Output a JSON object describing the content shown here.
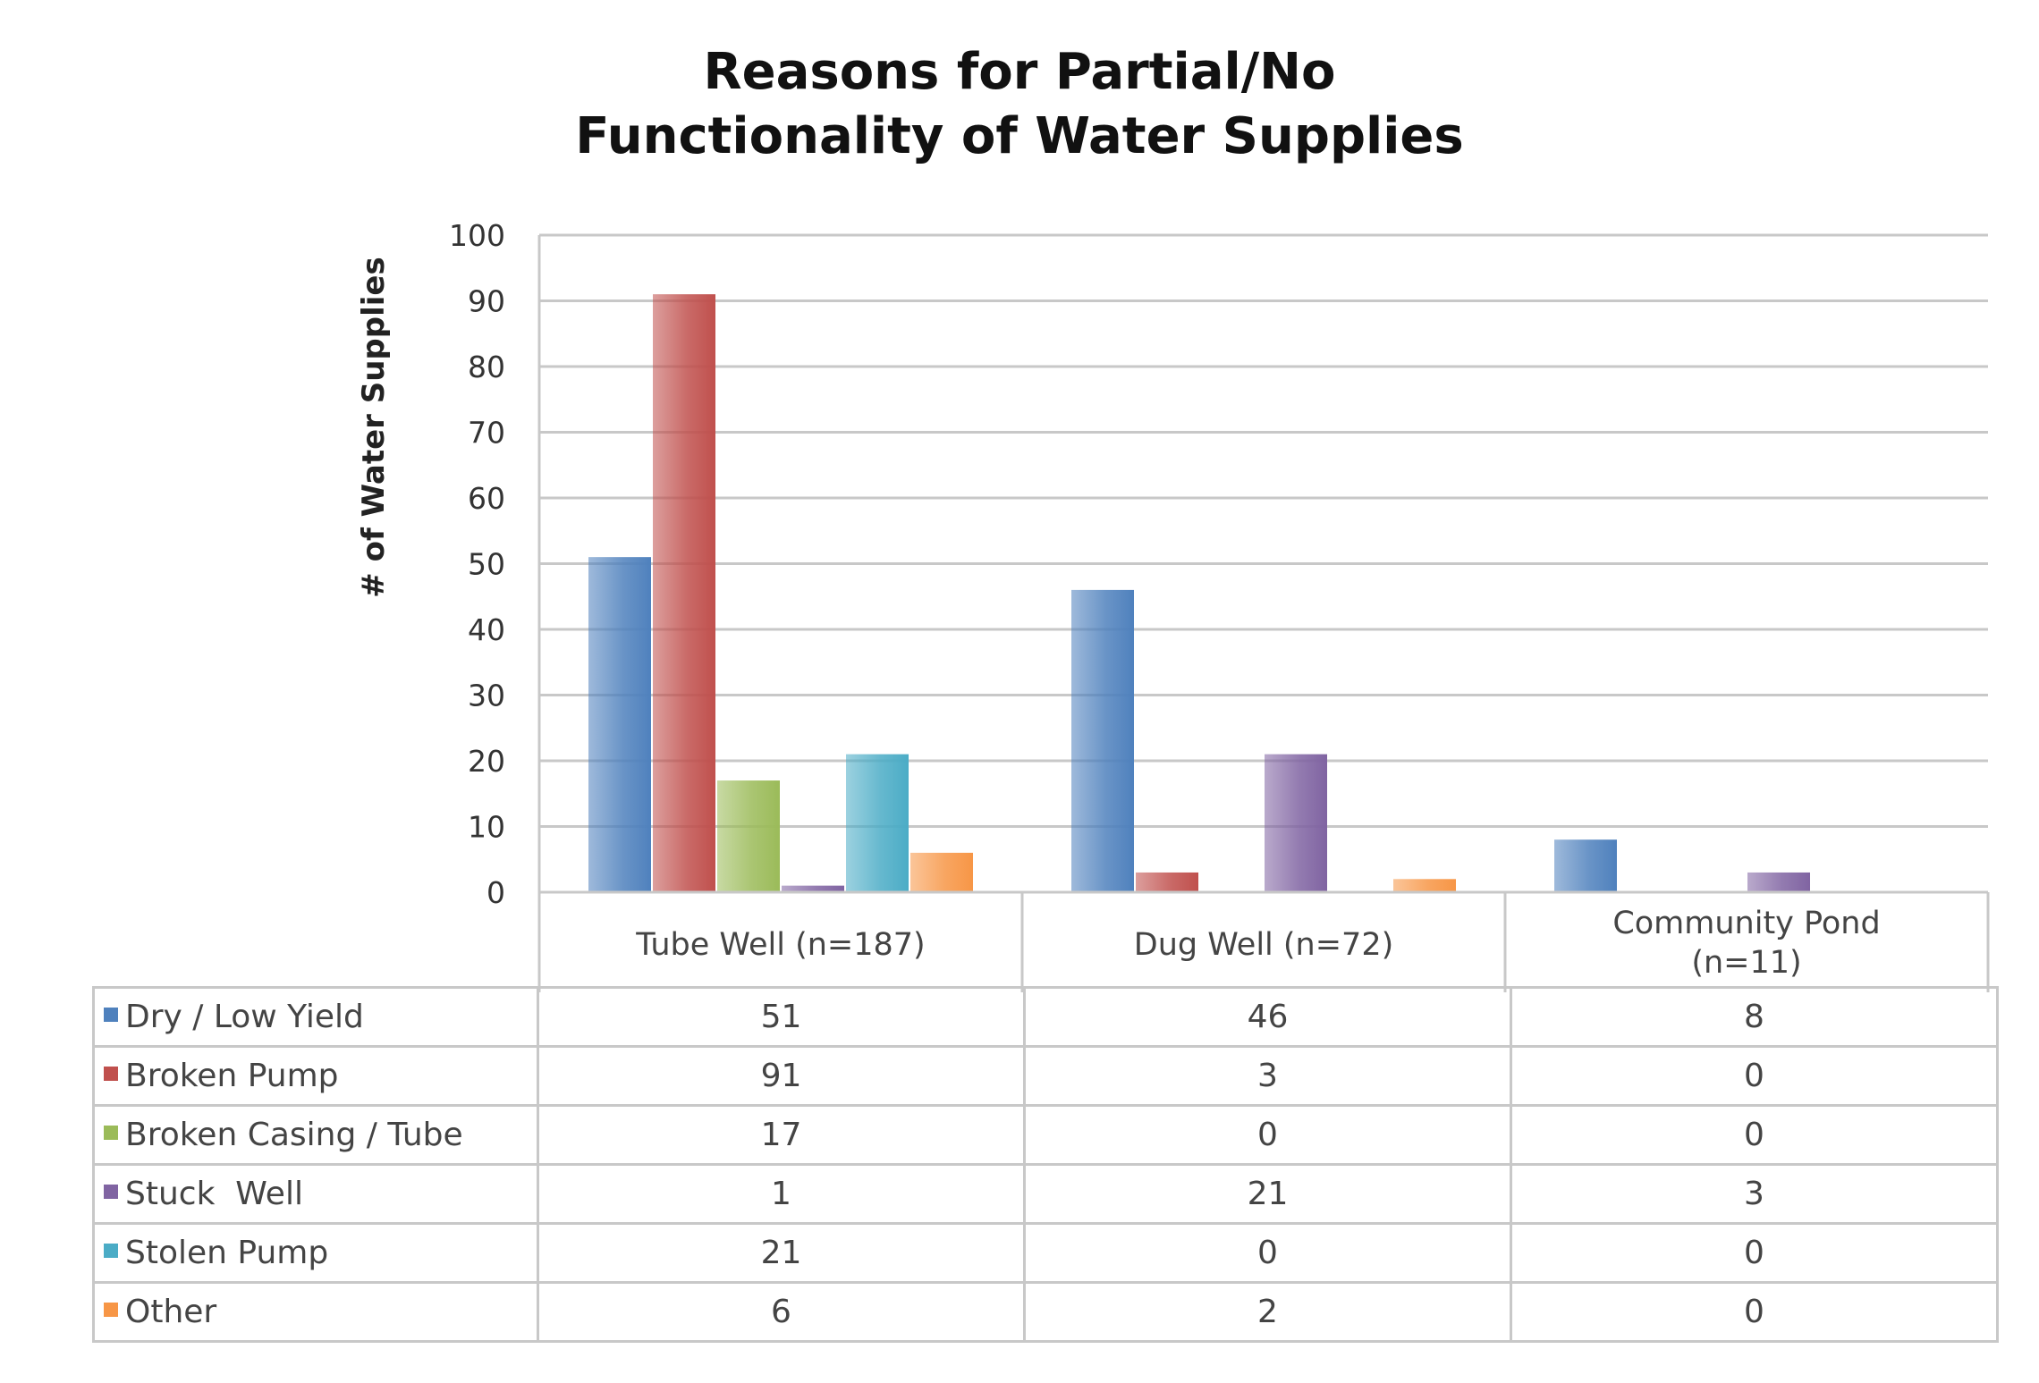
{
  "chart_data": {
    "type": "bar",
    "title": [
      "Reasons for Partial/No",
      "Functionality of Water Supplies"
    ],
    "ylabel": "# of Water Supplies",
    "xlabel": "",
    "ylim": [
      0,
      100
    ],
    "yticks": [
      0,
      10,
      20,
      30,
      40,
      50,
      60,
      70,
      80,
      90,
      100
    ],
    "grid": true,
    "legend": "data-table-below",
    "categories": [
      [
        "Tube Well (n=187)"
      ],
      [
        "Dug Well (n=72)"
      ],
      [
        "Community Pond",
        "(n=11)"
      ]
    ],
    "series": [
      {
        "name": "Dry / Low Yield",
        "color": "#4f81bd",
        "values": [
          51,
          46,
          8
        ]
      },
      {
        "name": "Broken Pump",
        "color": "#c0504d",
        "values": [
          91,
          3,
          0
        ]
      },
      {
        "name": "Broken Casing / Tube",
        "color": "#9bbb59",
        "values": [
          17,
          0,
          0
        ]
      },
      {
        "name": "Stuck  Well",
        "color": "#8064a2",
        "values": [
          1,
          21,
          3
        ]
      },
      {
        "name": "Stolen Pump",
        "color": "#4bacc6",
        "values": [
          21,
          0,
          0
        ]
      },
      {
        "name": "Other",
        "color": "#f79646",
        "values": [
          6,
          2,
          0
        ]
      }
    ]
  }
}
